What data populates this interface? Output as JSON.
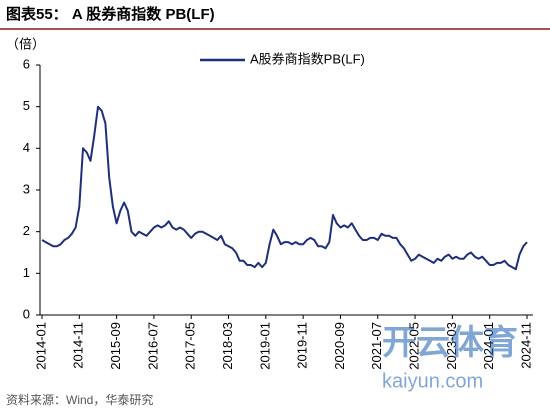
{
  "chart_data": {
    "type": "line",
    "title": "图表55：  A 股券商指数 PB(LF)",
    "y_label": "（倍）",
    "source": "资料来源：Wind，华泰研究",
    "x": [
      "2014-01",
      "2014-02",
      "2014-03",
      "2014-04",
      "2014-05",
      "2014-06",
      "2014-07",
      "2014-08",
      "2014-09",
      "2014-10",
      "2014-11",
      "2014-12",
      "2015-01",
      "2015-02",
      "2015-03",
      "2015-04",
      "2015-05",
      "2015-06",
      "2015-07",
      "2015-08",
      "2015-09",
      "2015-10",
      "2015-11",
      "2015-12",
      "2016-01",
      "2016-02",
      "2016-03",
      "2016-04",
      "2016-05",
      "2016-06",
      "2016-07",
      "2016-08",
      "2016-09",
      "2016-10",
      "2016-11",
      "2016-12",
      "2017-01",
      "2017-02",
      "2017-03",
      "2017-04",
      "2017-05",
      "2017-06",
      "2017-07",
      "2017-08",
      "2017-09",
      "2017-10",
      "2017-11",
      "2017-12",
      "2018-01",
      "2018-02",
      "2018-03",
      "2018-04",
      "2018-05",
      "2018-06",
      "2018-07",
      "2018-08",
      "2018-09",
      "2018-10",
      "2018-11",
      "2018-12",
      "2019-01",
      "2019-02",
      "2019-03",
      "2019-04",
      "2019-05",
      "2019-06",
      "2019-07",
      "2019-08",
      "2019-09",
      "2019-10",
      "2019-11",
      "2019-12",
      "2020-01",
      "2020-02",
      "2020-03",
      "2020-04",
      "2020-05",
      "2020-06",
      "2020-07",
      "2020-08",
      "2020-09",
      "2020-10",
      "2020-11",
      "2020-12",
      "2021-01",
      "2021-02",
      "2021-03",
      "2021-04",
      "2021-05",
      "2021-06",
      "2021-07",
      "2021-08",
      "2021-09",
      "2021-10",
      "2021-11",
      "2021-12",
      "2022-01",
      "2022-02",
      "2022-03",
      "2022-04",
      "2022-05",
      "2022-06",
      "2022-07",
      "2022-08",
      "2022-09",
      "2022-10",
      "2022-11",
      "2022-12",
      "2023-01",
      "2023-02",
      "2023-03",
      "2023-04",
      "2023-05",
      "2023-06",
      "2023-07",
      "2023-08",
      "2023-09",
      "2023-10",
      "2023-11",
      "2023-12",
      "2024-01",
      "2024-02",
      "2024-03",
      "2024-04",
      "2024-05",
      "2024-06",
      "2024-07",
      "2024-08",
      "2024-09",
      "2024-10",
      "2024-11"
    ],
    "series": [
      {
        "name": "A股券商指数PB(LF)",
        "color": "#1f2f7a",
        "values": [
          1.8,
          1.75,
          1.7,
          1.65,
          1.65,
          1.7,
          1.8,
          1.85,
          1.95,
          2.1,
          2.6,
          4.0,
          3.9,
          3.7,
          4.3,
          5.0,
          4.9,
          4.6,
          3.3,
          2.6,
          2.2,
          2.5,
          2.7,
          2.5,
          2.0,
          1.9,
          2.0,
          1.95,
          1.9,
          2.0,
          2.1,
          2.15,
          2.1,
          2.15,
          2.25,
          2.1,
          2.05,
          2.1,
          2.05,
          1.95,
          1.85,
          1.95,
          2.0,
          2.0,
          1.95,
          1.9,
          1.85,
          1.8,
          1.9,
          1.7,
          1.65,
          1.6,
          1.5,
          1.3,
          1.3,
          1.2,
          1.2,
          1.15,
          1.25,
          1.15,
          1.25,
          1.7,
          2.05,
          1.9,
          1.7,
          1.75,
          1.75,
          1.7,
          1.75,
          1.7,
          1.7,
          1.8,
          1.85,
          1.8,
          1.65,
          1.65,
          1.6,
          1.75,
          2.4,
          2.2,
          2.1,
          2.15,
          2.1,
          2.2,
          2.05,
          1.9,
          1.8,
          1.8,
          1.85,
          1.85,
          1.8,
          1.95,
          1.9,
          1.9,
          1.85,
          1.85,
          1.7,
          1.6,
          1.45,
          1.3,
          1.35,
          1.45,
          1.4,
          1.35,
          1.3,
          1.25,
          1.35,
          1.3,
          1.4,
          1.45,
          1.35,
          1.4,
          1.35,
          1.35,
          1.45,
          1.5,
          1.4,
          1.35,
          1.4,
          1.3,
          1.2,
          1.2,
          1.25,
          1.25,
          1.3,
          1.2,
          1.15,
          1.1,
          1.45,
          1.65,
          1.75
        ]
      }
    ],
    "xlim": [
      "2014-01",
      "2024-11"
    ],
    "xticks": [
      "2014-01",
      "2014-11",
      "2015-09",
      "2016-07",
      "2017-05",
      "2018-03",
      "2019-01",
      "2019-11",
      "2020-09",
      "2021-07",
      "2022-05",
      "2023-03",
      "2024-01",
      "2024-11"
    ],
    "ylim": [
      0,
      6
    ],
    "yticks": [
      0,
      1,
      2,
      3,
      4,
      5,
      6
    ],
    "grid": false,
    "legend": "top"
  },
  "watermark": {
    "brand": "开云体育",
    "url": "kaiyun.com"
  }
}
